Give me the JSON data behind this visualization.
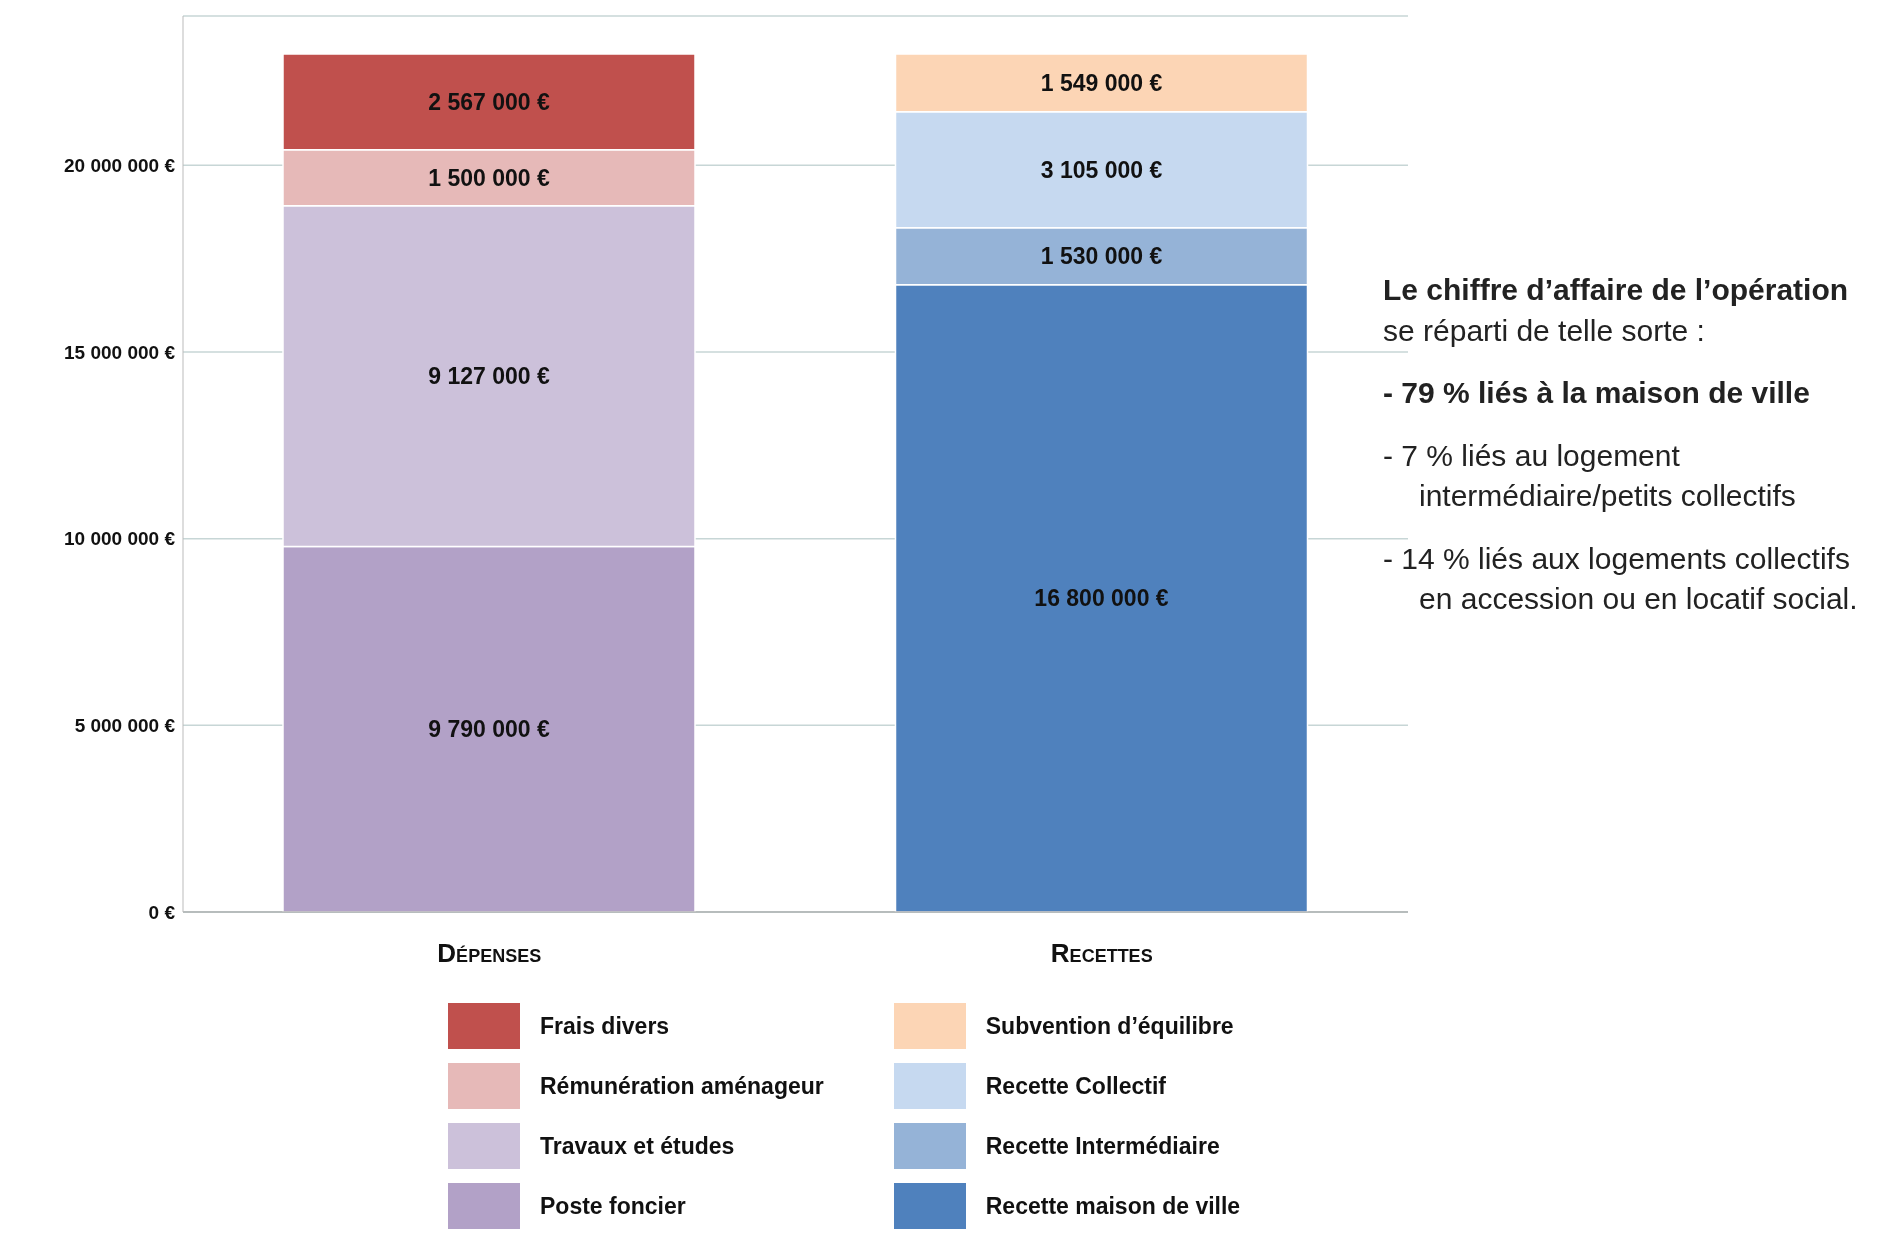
{
  "chart_data": {
    "type": "bar",
    "stacked": true,
    "categories": [
      "Dépenses",
      "Recettes"
    ],
    "series": [
      {
        "name": "Poste foncier",
        "color": "#b2a1c7",
        "values": [
          9790000,
          null
        ],
        "value_labels": [
          "9 790 000 €",
          null
        ]
      },
      {
        "name": "Travaux et études",
        "color": "#ccc1da",
        "values": [
          9127000,
          null
        ],
        "value_labels": [
          "9 127 000 €",
          null
        ]
      },
      {
        "name": "Rémunération aménageur",
        "color": "#e6b9b8",
        "values": [
          1500000,
          null
        ],
        "value_labels": [
          "1 500 000 €",
          null
        ]
      },
      {
        "name": "Frais divers",
        "color": "#c0504d",
        "values": [
          2567000,
          null
        ],
        "value_labels": [
          "2 567 000 €",
          null
        ]
      },
      {
        "name": "Recette maison de ville",
        "color": "#4f81bd",
        "values": [
          null,
          16800000
        ],
        "value_labels": [
          null,
          "16 800 000 €"
        ]
      },
      {
        "name": "Recette Intermédiaire",
        "color": "#95b3d7",
        "values": [
          null,
          1530000
        ],
        "value_labels": [
          null,
          "1 530 000 €"
        ]
      },
      {
        "name": "Recette Collectif",
        "color": "#c6d9f0",
        "values": [
          null,
          3105000
        ],
        "value_labels": [
          null,
          "3 105 000 €"
        ]
      },
      {
        "name": "Subvention d’équilibre",
        "color": "#fcd5b5",
        "values": [
          null,
          1549000
        ],
        "value_labels": [
          null,
          "1 549 000 €"
        ]
      }
    ],
    "ylim": [
      0,
      24000000
    ],
    "yticks": [
      {
        "value": 0,
        "label": "0 €"
      },
      {
        "value": 5000000,
        "label": "5 000 000 €"
      },
      {
        "value": 10000000,
        "label": "10 000 000 €"
      },
      {
        "value": 15000000,
        "label": "15 000 000 €"
      },
      {
        "value": 20000000,
        "label": "20 000 000 €"
      }
    ],
    "grid": "y",
    "legend": "bottom",
    "annotations": [
      "Le chiffre d’affaire de l’opération",
      "se réparti de telle sorte :",
      "- 79 % liés à la maison de ville",
      "- 7 % liés au logement intermédiaire/petits collectifs",
      "- 14 % liés aux logements collectifs en accession ou en locatif social."
    ]
  }
}
